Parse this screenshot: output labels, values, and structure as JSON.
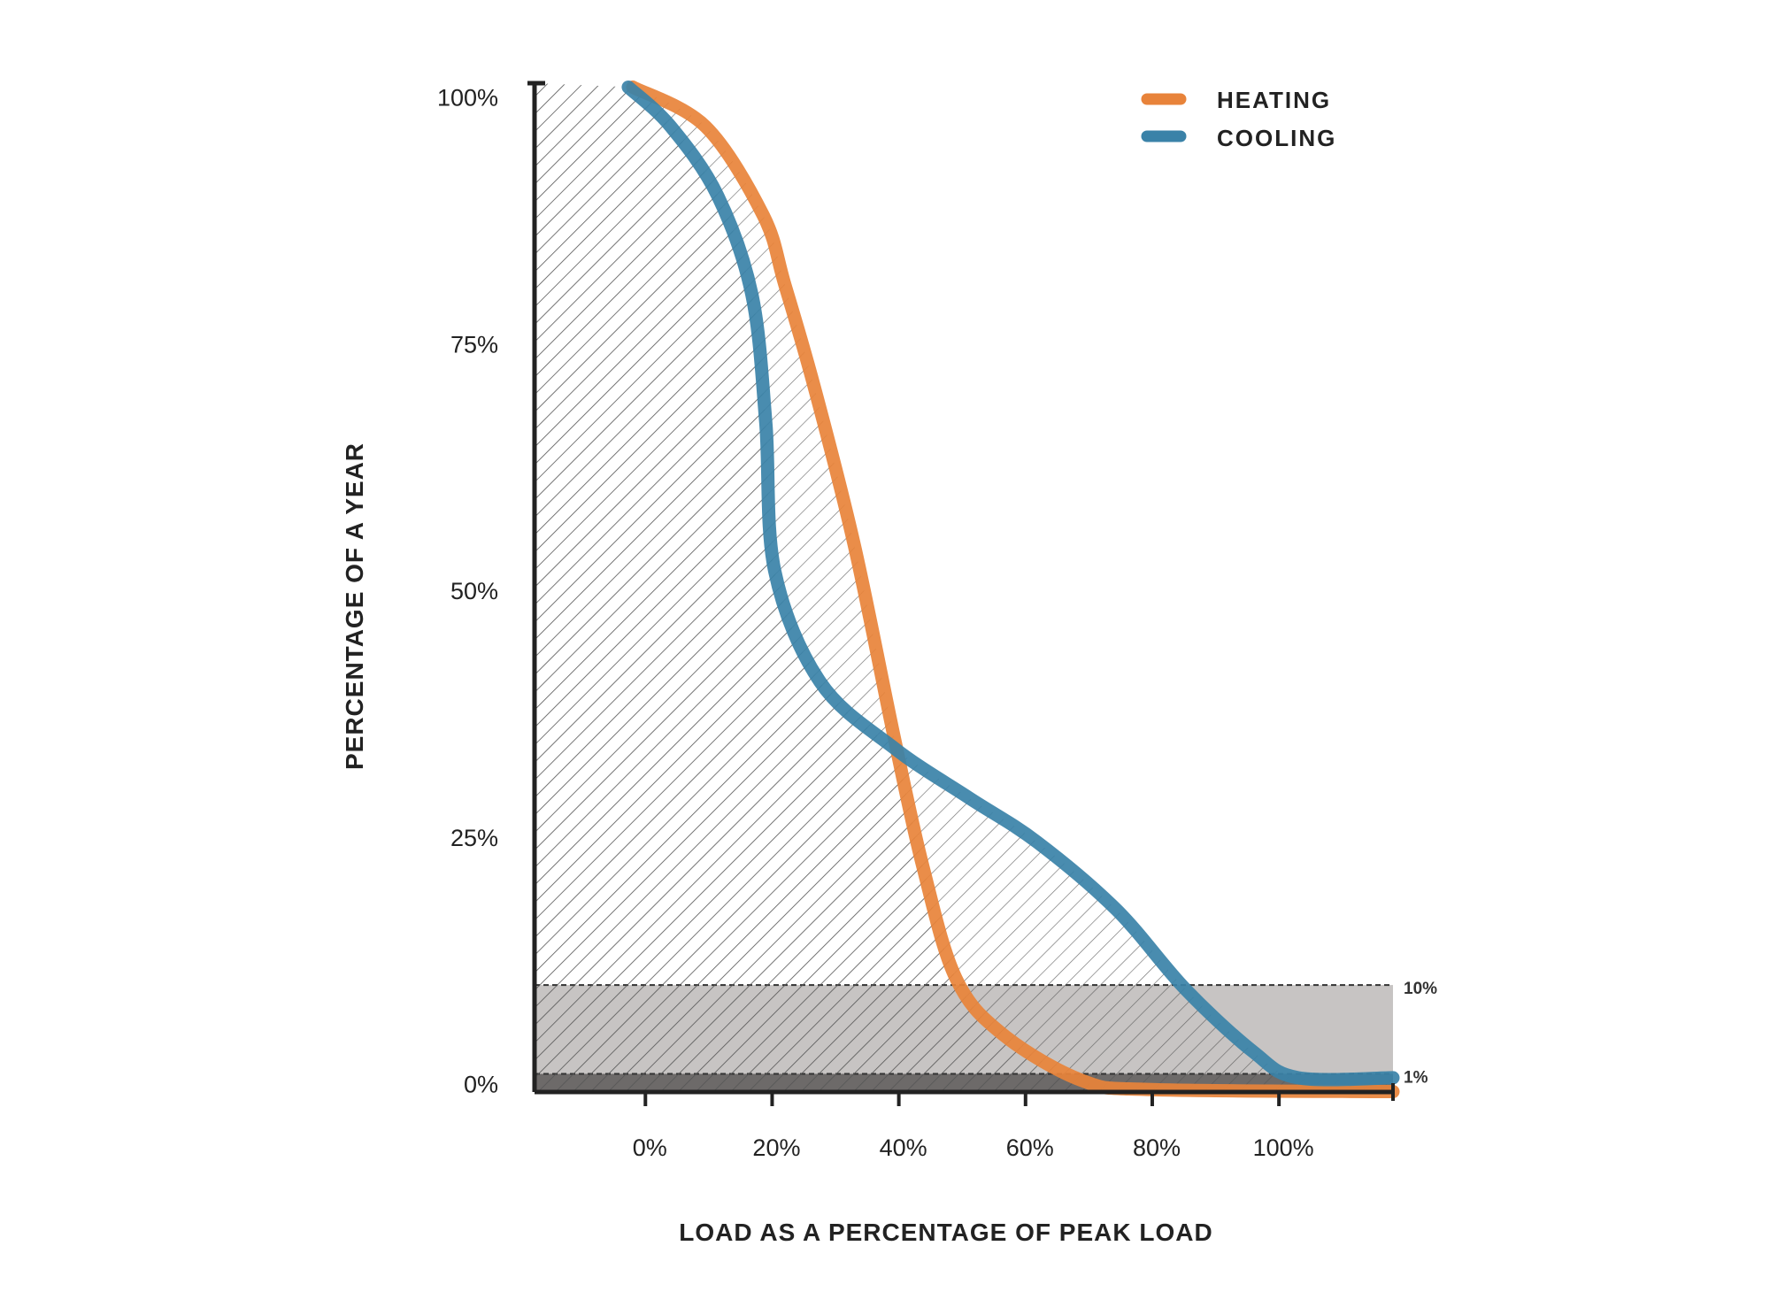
{
  "chart_data": {
    "type": "line",
    "title": "",
    "xlabel": "LOAD AS A PERCENTAGE OF PEAK LOAD",
    "ylabel": "PERCENTAGE OF A YEAR",
    "xlim": [
      -17.5,
      118
    ],
    "ylim": [
      -1,
      101
    ],
    "x_ticks": [
      0,
      20,
      40,
      60,
      80,
      100
    ],
    "x_tick_labels": [
      "0%",
      "20%",
      "40%",
      "60%",
      "80%",
      "100%"
    ],
    "y_ticks": [
      0,
      25,
      50,
      75,
      100
    ],
    "y_tick_labels": [
      "0%",
      "25%",
      "50%",
      "75%",
      "100%"
    ],
    "grid": false,
    "legend_position": "top-right",
    "series": [
      {
        "name": "HEATING",
        "color": "#E8833A",
        "x": [
          -2,
          9.5,
          18.6,
          22,
          26.7,
          33,
          39.3,
          43.8,
          49,
          56.4,
          69,
          80,
          118
        ],
        "y": [
          101,
          97,
          88,
          81,
          70.5,
          54.5,
          35,
          22,
          10.7,
          5,
          0.3,
          -0.6,
          -0.8
        ]
      },
      {
        "name": "COOLING",
        "color": "#3A82A8",
        "x": [
          -2.7,
          4,
          11.4,
          16.8,
          19,
          20.4,
          27.6,
          39.3,
          51,
          61.8,
          74.4,
          85.2,
          96,
          103,
          118
        ],
        "y": [
          101,
          97,
          90,
          80,
          67,
          52,
          40.7,
          34,
          29,
          24.5,
          17.6,
          9.6,
          3.2,
          0.6,
          0.6
        ]
      }
    ],
    "bands": [
      {
        "label": "10%",
        "from": 1,
        "to": 10,
        "color": "#c7c4c3"
      },
      {
        "label": "1%",
        "from": 0,
        "to": 1,
        "color": "#6d6a69"
      }
    ],
    "shading": "hatched area under curves"
  }
}
